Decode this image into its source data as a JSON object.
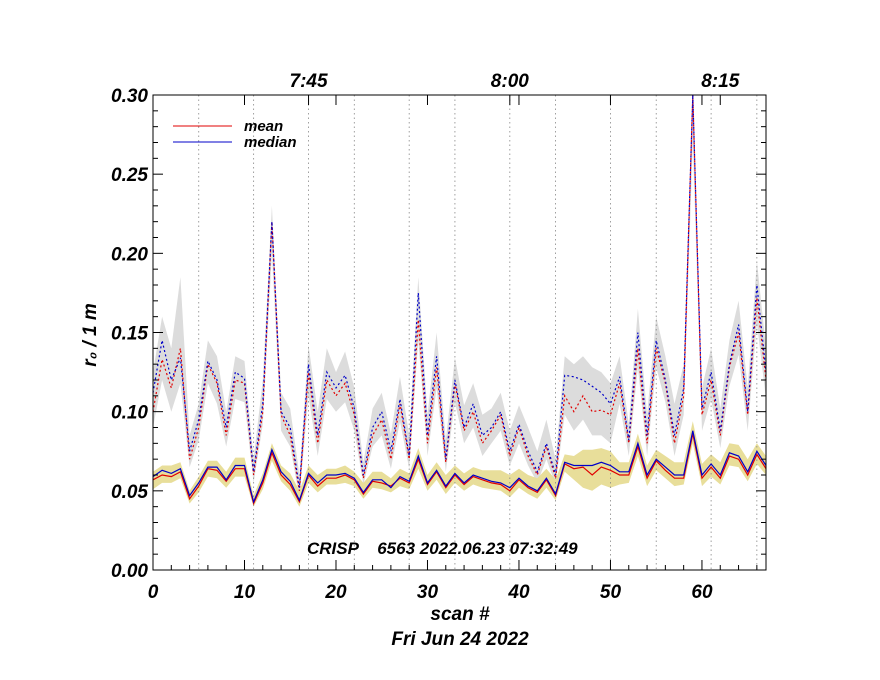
{
  "chart_data": {
    "type": "line",
    "ylabel": "r₀ / 1 m",
    "xlabel": "scan #",
    "date_label": "Fri Jun 24 2022",
    "annotation": "CRISP    6563 2022.06.23 07:32:49",
    "xlim": [
      0,
      67
    ],
    "ylim": [
      0,
      0.3
    ],
    "x_ticks": [
      0,
      10,
      20,
      30,
      40,
      50,
      60
    ],
    "y_ticks": [
      0.0,
      0.05,
      0.1,
      0.15,
      0.2,
      0.25,
      0.3
    ],
    "y_tick_labels": [
      "0.00",
      "0.05",
      "0.10",
      "0.15",
      "0.20",
      "0.25",
      "0.30"
    ],
    "time_ticks": [
      {
        "label": "7:45",
        "scan": 17
      },
      {
        "label": "8:00",
        "scan": 39
      },
      {
        "label": "8:15",
        "scan": 62
      }
    ],
    "time_gridlines": [
      5,
      11,
      17,
      22,
      28,
      33,
      39,
      44,
      50,
      55,
      61,
      66
    ],
    "legend": [
      {
        "name": "mean",
        "color": "#e00000"
      },
      {
        "name": "median",
        "color": "#0000c8"
      }
    ],
    "legend_position": "top-left",
    "colors": {
      "mean": "#e00000",
      "median": "#0000c8",
      "band_low": "#e8de9a",
      "band_high": "#dcdcdc"
    },
    "low_mean": [
      0.057,
      0.06,
      0.059,
      0.062,
      0.045,
      0.053,
      0.064,
      0.063,
      0.056,
      0.064,
      0.064,
      0.042,
      0.055,
      0.074,
      0.06,
      0.054,
      0.043,
      0.06,
      0.053,
      0.058,
      0.058,
      0.06,
      0.057,
      0.048,
      0.056,
      0.055,
      0.053,
      0.058,
      0.055,
      0.07,
      0.054,
      0.062,
      0.052,
      0.06,
      0.054,
      0.059,
      0.057,
      0.055,
      0.054,
      0.05,
      0.057,
      0.052,
      0.049,
      0.057,
      0.047,
      0.067,
      0.064,
      0.065,
      0.06,
      0.065,
      0.063,
      0.06,
      0.06,
      0.078,
      0.058,
      0.069,
      0.063,
      0.058,
      0.058,
      0.086,
      0.058,
      0.065,
      0.058,
      0.072,
      0.07,
      0.06,
      0.073,
      0.064
    ],
    "low_median": [
      0.059,
      0.063,
      0.061,
      0.064,
      0.047,
      0.055,
      0.065,
      0.065,
      0.057,
      0.066,
      0.066,
      0.043,
      0.057,
      0.076,
      0.062,
      0.056,
      0.044,
      0.061,
      0.055,
      0.06,
      0.06,
      0.061,
      0.058,
      0.049,
      0.057,
      0.057,
      0.052,
      0.059,
      0.056,
      0.072,
      0.055,
      0.063,
      0.053,
      0.061,
      0.055,
      0.06,
      0.058,
      0.056,
      0.055,
      0.052,
      0.058,
      0.053,
      0.05,
      0.058,
      0.048,
      0.068,
      0.066,
      0.066,
      0.066,
      0.068,
      0.066,
      0.062,
      0.062,
      0.08,
      0.06,
      0.07,
      0.065,
      0.06,
      0.06,
      0.088,
      0.06,
      0.067,
      0.06,
      0.074,
      0.072,
      0.062,
      0.075,
      0.066
    ],
    "high_mean": [
      0.1,
      0.133,
      0.115,
      0.14,
      0.07,
      0.09,
      0.13,
      0.118,
      0.085,
      0.12,
      0.118,
      0.06,
      0.1,
      0.22,
      0.098,
      0.085,
      0.05,
      0.125,
      0.08,
      0.12,
      0.11,
      0.118,
      0.098,
      0.058,
      0.085,
      0.095,
      0.07,
      0.105,
      0.07,
      0.158,
      0.08,
      0.128,
      0.068,
      0.118,
      0.088,
      0.1,
      0.08,
      0.088,
      0.098,
      0.072,
      0.09,
      0.072,
      0.06,
      0.078,
      0.058,
      0.11,
      0.1,
      0.11,
      0.1,
      0.101,
      0.098,
      0.118,
      0.08,
      0.14,
      0.08,
      0.14,
      0.118,
      0.08,
      0.11,
      0.3,
      0.098,
      0.12,
      0.085,
      0.128,
      0.15,
      0.098,
      0.172,
      0.12
    ],
    "high_median": [
      0.112,
      0.145,
      0.12,
      0.134,
      0.075,
      0.095,
      0.132,
      0.12,
      0.09,
      0.125,
      0.121,
      0.062,
      0.105,
      0.22,
      0.1,
      0.09,
      0.052,
      0.13,
      0.085,
      0.125,
      0.115,
      0.123,
      0.102,
      0.06,
      0.09,
      0.1,
      0.075,
      0.108,
      0.072,
      0.175,
      0.085,
      0.135,
      0.07,
      0.12,
      0.09,
      0.105,
      0.085,
      0.09,
      0.1,
      0.075,
      0.092,
      0.075,
      0.062,
      0.08,
      0.06,
      0.123,
      0.122,
      0.12,
      0.116,
      0.112,
      0.105,
      0.122,
      0.082,
      0.15,
      0.085,
      0.145,
      0.12,
      0.085,
      0.115,
      0.305,
      0.102,
      0.125,
      0.088,
      0.13,
      0.155,
      0.1,
      0.18,
      0.125
    ],
    "band_low_lo": [
      0.051,
      0.055,
      0.055,
      0.058,
      0.042,
      0.049,
      0.059,
      0.058,
      0.052,
      0.059,
      0.059,
      0.04,
      0.051,
      0.069,
      0.056,
      0.05,
      0.04,
      0.055,
      0.049,
      0.054,
      0.054,
      0.055,
      0.053,
      0.045,
      0.052,
      0.051,
      0.049,
      0.053,
      0.051,
      0.064,
      0.05,
      0.057,
      0.048,
      0.055,
      0.05,
      0.054,
      0.052,
      0.051,
      0.05,
      0.046,
      0.052,
      0.048,
      0.045,
      0.052,
      0.044,
      0.062,
      0.057,
      0.052,
      0.05,
      0.054,
      0.052,
      0.054,
      0.055,
      0.072,
      0.053,
      0.063,
      0.058,
      0.053,
      0.054,
      0.08,
      0.053,
      0.059,
      0.054,
      0.066,
      0.065,
      0.056,
      0.067,
      0.06
    ],
    "band_low_hi": [
      0.062,
      0.066,
      0.066,
      0.068,
      0.05,
      0.059,
      0.069,
      0.069,
      0.062,
      0.071,
      0.071,
      0.047,
      0.061,
      0.08,
      0.066,
      0.061,
      0.05,
      0.066,
      0.06,
      0.064,
      0.064,
      0.066,
      0.062,
      0.055,
      0.062,
      0.062,
      0.058,
      0.064,
      0.061,
      0.077,
      0.06,
      0.068,
      0.06,
      0.066,
      0.061,
      0.065,
      0.063,
      0.063,
      0.063,
      0.06,
      0.064,
      0.06,
      0.058,
      0.064,
      0.057,
      0.073,
      0.072,
      0.076,
      0.076,
      0.077,
      0.075,
      0.068,
      0.068,
      0.086,
      0.066,
      0.076,
      0.072,
      0.068,
      0.068,
      0.094,
      0.067,
      0.073,
      0.068,
      0.08,
      0.079,
      0.07,
      0.08,
      0.072
    ],
    "band_high_lo": [
      0.09,
      0.12,
      0.1,
      0.118,
      0.065,
      0.082,
      0.118,
      0.105,
      0.078,
      0.108,
      0.106,
      0.055,
      0.092,
      0.2,
      0.088,
      0.078,
      0.046,
      0.11,
      0.072,
      0.108,
      0.1,
      0.106,
      0.088,
      0.054,
      0.078,
      0.085,
      0.064,
      0.094,
      0.064,
      0.145,
      0.072,
      0.115,
      0.062,
      0.106,
      0.08,
      0.09,
      0.072,
      0.08,
      0.088,
      0.066,
      0.08,
      0.066,
      0.055,
      0.07,
      0.054,
      0.098,
      0.088,
      0.095,
      0.085,
      0.085,
      0.08,
      0.105,
      0.072,
      0.128,
      0.072,
      0.128,
      0.106,
      0.072,
      0.098,
      0.27,
      0.088,
      0.108,
      0.077,
      0.116,
      0.136,
      0.088,
      0.156,
      0.108
    ],
    "band_high_hi": [
      0.125,
      0.16,
      0.14,
      0.185,
      0.085,
      0.105,
      0.145,
      0.135,
      0.1,
      0.135,
      0.132,
      0.07,
      0.12,
      0.23,
      0.112,
      0.102,
      0.06,
      0.142,
      0.1,
      0.14,
      0.125,
      0.138,
      0.115,
      0.068,
      0.102,
      0.112,
      0.086,
      0.122,
      0.085,
      0.185,
      0.098,
      0.15,
      0.082,
      0.134,
      0.104,
      0.118,
      0.098,
      0.102,
      0.112,
      0.088,
      0.104,
      0.09,
      0.075,
      0.095,
      0.07,
      0.135,
      0.13,
      0.135,
      0.128,
      0.125,
      0.118,
      0.135,
      0.092,
      0.165,
      0.098,
      0.16,
      0.135,
      0.105,
      0.13,
      0.31,
      0.115,
      0.14,
      0.102,
      0.145,
      0.17,
      0.115,
      0.195,
      0.14
    ]
  }
}
